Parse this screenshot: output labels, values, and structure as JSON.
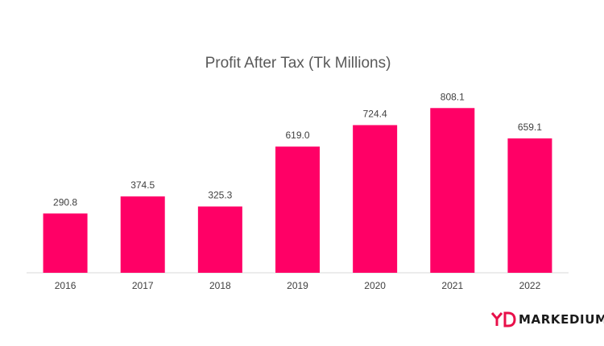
{
  "chart_data": {
    "type": "bar",
    "title": "Profit After Tax (Tk Millions)",
    "categories": [
      "2016",
      "2017",
      "2018",
      "2019",
      "2020",
      "2021",
      "2022"
    ],
    "values": [
      290.8,
      374.5,
      325.3,
      619.0,
      724.4,
      808.1,
      659.1
    ],
    "value_labels": [
      "290.8",
      "374.5",
      "325.3",
      "619.0",
      "724.4",
      "808.1",
      "659.1"
    ],
    "xlabel": "",
    "ylabel": "",
    "ylim": [
      0,
      900
    ],
    "grid": false,
    "legend": "none",
    "bar_color": "#ff0066",
    "label_color": "#404040",
    "axis_color": "#d9d9d9"
  },
  "brand": {
    "name": "MARKEDIUM",
    "logo_text": "MD",
    "logo_color": "#e8104a"
  }
}
